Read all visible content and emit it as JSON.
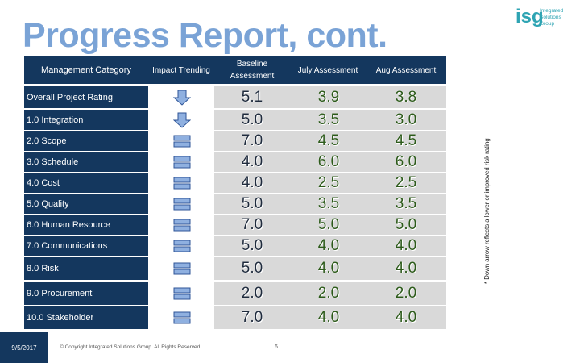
{
  "title": "Progress Report, cont.",
  "logo": {
    "mark": "isg",
    "text": "Integrated Solutions Group"
  },
  "headers": {
    "management": "Management Category",
    "impact": "Impact Trending",
    "baseline": "Baseline Assessment",
    "july": "July Assessment",
    "aug": "Aug Assessment"
  },
  "rows": [
    {
      "category": "Overall Project Rating",
      "trend": "down",
      "baseline": "5.1",
      "july": "3.9",
      "aug": "3.8"
    },
    {
      "category": "1.0 Integration",
      "trend": "down",
      "baseline": "5.0",
      "july": "3.5",
      "aug": "3.0"
    },
    {
      "category": "2.0 Scope",
      "trend": "equal",
      "baseline": "7.0",
      "july": "4.5",
      "aug": "4.5"
    },
    {
      "category": "3.0 Schedule",
      "trend": "equal",
      "baseline": "4.0",
      "july": "6.0",
      "aug": "6.0"
    },
    {
      "category": "4.0 Cost",
      "trend": "equal",
      "baseline": "4.0",
      "july": "2.5",
      "aug": "2.5"
    },
    {
      "category": "5.0 Quality",
      "trend": "equal",
      "baseline": "5.0",
      "july": "3.5",
      "aug": "3.5"
    },
    {
      "category": "6.0 Human Resource",
      "trend": "equal",
      "baseline": "7.0",
      "july": "5.0",
      "aug": "5.0"
    },
    {
      "category": "7.0 Communications",
      "trend": "equal",
      "baseline": "5.0",
      "july": "4.0",
      "aug": "4.0"
    },
    {
      "category": "8.0 Risk",
      "trend": "equal",
      "baseline": "5.0",
      "july": "4.0",
      "aug": "4.0"
    },
    {
      "category": "9.0 Procurement",
      "trend": "equal",
      "baseline": "2.0",
      "july": "2.0",
      "aug": "2.0"
    },
    {
      "category": "10.0 Stakeholder",
      "trend": "equal",
      "baseline": "7.0",
      "july": "4.0",
      "aug": "4.0"
    }
  ],
  "colors": {
    "header_bg": "#14375e",
    "cell_bg": "#d9d9d9",
    "title": "#7aa3d6",
    "icon_fill": "#8fb0e0",
    "icon_stroke": "#2f5597"
  },
  "footer": {
    "date": "9/5/2017",
    "copyright": "© Copyright Integrated Solutions Group. All Rights Reserved.",
    "page": "6"
  },
  "side_note": "* Down arrow reflects a lower or improved risk rating"
}
